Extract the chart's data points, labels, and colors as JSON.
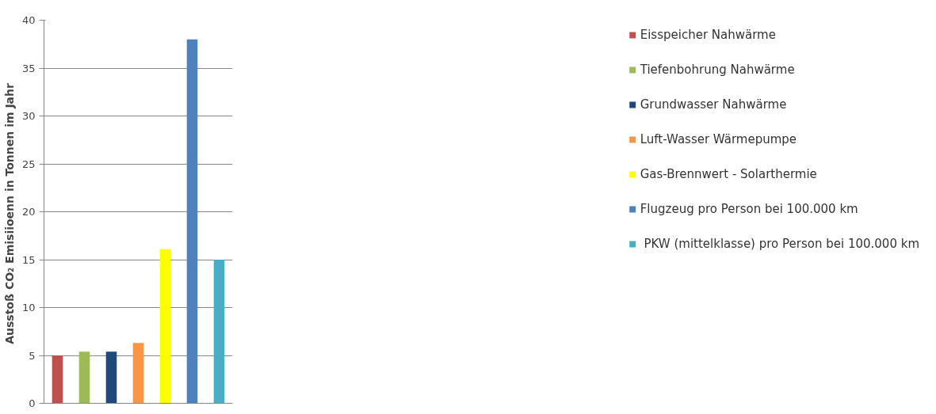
{
  "chart_data": {
    "type": "bar",
    "ylabel": "Ausstoß CO₂ Emisiioenn  in Tonnen im Jahr",
    "categories": [
      null,
      null,
      null,
      null,
      null,
      null,
      null
    ],
    "series": [
      {
        "name": "Eisspeicher Nahwärme",
        "color": "#c0504d",
        "values": [
          5.0,
          null,
          null,
          null,
          null,
          null,
          null
        ]
      },
      {
        "name": "Tiefenbohrung Nahwärme",
        "color": "#9bbb59",
        "values": [
          null,
          5.4,
          null,
          null,
          null,
          null,
          null
        ]
      },
      {
        "name": "Grundwasser Nahwärme",
        "color": "#1f497d",
        "values": [
          null,
          null,
          5.4,
          null,
          null,
          null,
          null
        ]
      },
      {
        "name": "Luft-Wasser Wärmepumpe",
        "color": "#f79646",
        "values": [
          null,
          null,
          null,
          6.3,
          null,
          null,
          null
        ]
      },
      {
        "name": "Gas-Brennwert - Solarthermie",
        "color": "#ffff00",
        "values": [
          null,
          null,
          null,
          null,
          16.1,
          null,
          null
        ]
      },
      {
        "name": "Flugzeug pro Person bei 100.000 km",
        "color": "#4f81bd",
        "values": [
          null,
          null,
          null,
          null,
          null,
          38,
          null
        ]
      },
      {
        "name": " PKW (mittelklasse) pro Person bei 100.000 km",
        "color": "#4bacc6",
        "values": [
          null,
          null,
          null,
          null,
          null,
          null,
          15
        ]
      }
    ],
    "ylim": [
      0,
      40
    ],
    "yticks": [
      0,
      5,
      10,
      15,
      20,
      25,
      30,
      35,
      40
    ],
    "grid": "y",
    "legend": "right"
  }
}
